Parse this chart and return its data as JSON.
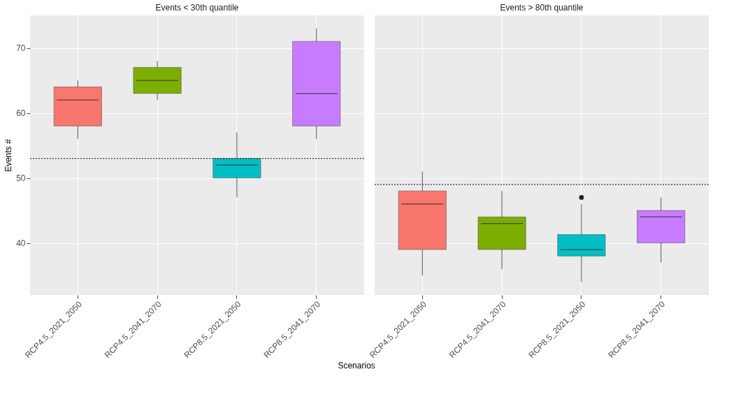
{
  "chart_data": [
    {
      "type": "box",
      "title": "Events < 30th quantile",
      "xlabel": "Scenarios",
      "ylabel": "Events #",
      "categories": [
        "RCP4.5_2021_2050",
        "RCP4.5_2041_2070",
        "RCP8.5_2021_2050",
        "RCP8.5_2041_2070"
      ],
      "colors": [
        "#f8766d",
        "#7cae00",
        "#00bfc4",
        "#c77cff"
      ],
      "boxes": [
        {
          "low": 56,
          "q1": 58,
          "median": 62,
          "q3": 64,
          "high": 65
        },
        {
          "low": 62,
          "q1": 63,
          "median": 65,
          "q3": 67,
          "high": 68
        },
        {
          "low": 47,
          "q1": 50,
          "median": 52,
          "q3": 53,
          "high": 57
        },
        {
          "low": 56,
          "q1": 58,
          "median": 63,
          "q3": 71,
          "high": 73
        }
      ],
      "ylim": [
        32,
        75
      ],
      "yticks": [
        40,
        50,
        60,
        70
      ],
      "grid": true,
      "ref_lines": [
        {
          "axis": "y",
          "value": 53,
          "line_style": "dotted"
        }
      ]
    },
    {
      "type": "box",
      "title": "Events > 80th quantile",
      "categories": [
        "RCP4.5_2021_2050",
        "RCP4.5_2041_2070",
        "RCP8.5_2021_2050",
        "RCP8.5_2041_2070"
      ],
      "colors": [
        "#f8766d",
        "#7cae00",
        "#00bfc4",
        "#c77cff"
      ],
      "boxes": [
        {
          "low": 35,
          "q1": 39,
          "median": 46,
          "q3": 48,
          "high": 51
        },
        {
          "low": 36,
          "q1": 39,
          "median": 43,
          "q3": 44,
          "high": 48
        },
        {
          "low": 34,
          "q1": 38,
          "median": 39,
          "q3": 41.3,
          "high": 46,
          "outliers": [
            47
          ]
        },
        {
          "low": 37,
          "q1": 40,
          "median": 44,
          "q3": 45,
          "high": 47
        }
      ],
      "ylim": [
        32,
        75
      ],
      "yticks": [
        40,
        50,
        60,
        70
      ],
      "grid": true,
      "tick_labels": "x",
      "ref_lines": [
        {
          "axis": "y",
          "value": 49,
          "line_style": "dotted"
        }
      ]
    }
  ]
}
